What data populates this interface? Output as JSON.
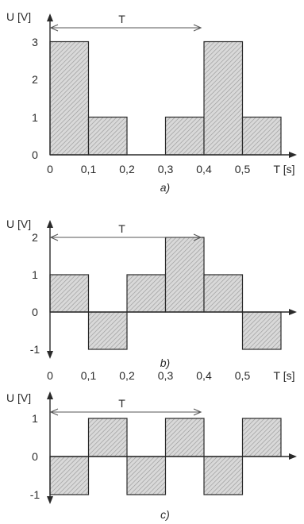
{
  "chart_data": [
    {
      "type": "bar",
      "panel_label": "a)",
      "ylabel": "U [V]",
      "xlabel": "T [s]",
      "period_label": "T",
      "period": [
        0,
        0.4
      ],
      "x_ticks": [
        "0",
        "0,1",
        "0,2",
        "0,3",
        "0,4",
        "0,5"
      ],
      "y_ticks": [
        "0",
        "1",
        "2",
        "3"
      ],
      "ylim": [
        0,
        3
      ],
      "bars": [
        {
          "x0": 0.0,
          "x1": 0.1,
          "value": 3
        },
        {
          "x0": 0.1,
          "x1": 0.2,
          "value": 1
        },
        {
          "x0": 0.2,
          "x1": 0.3,
          "value": 0
        },
        {
          "x0": 0.3,
          "x1": 0.4,
          "value": 1
        },
        {
          "x0": 0.4,
          "x1": 0.5,
          "value": 3
        },
        {
          "x0": 0.5,
          "x1": 0.6,
          "value": 1
        }
      ]
    },
    {
      "type": "bar",
      "panel_label": "b)",
      "ylabel": "U [V]",
      "xlabel": "T [s]",
      "period_label": "T",
      "period": [
        0,
        0.4
      ],
      "x_ticks": [
        "0",
        "0,1",
        "0,2",
        "0,3",
        "0,4",
        "0,5"
      ],
      "y_ticks": [
        "-1",
        "0",
        "1",
        "2"
      ],
      "ylim": [
        -1,
        2
      ],
      "bars": [
        {
          "x0": 0.0,
          "x1": 0.1,
          "value": 1
        },
        {
          "x0": 0.1,
          "x1": 0.2,
          "value": -1
        },
        {
          "x0": 0.2,
          "x1": 0.3,
          "value": 1
        },
        {
          "x0": 0.3,
          "x1": 0.4,
          "value": 2
        },
        {
          "x0": 0.4,
          "x1": 0.5,
          "value": 1
        },
        {
          "x0": 0.5,
          "x1": 0.6,
          "value": -1
        }
      ]
    },
    {
      "type": "bar",
      "panel_label": "c)",
      "ylabel": "U [V]",
      "xlabel": "",
      "period_label": "T",
      "period": [
        0,
        0.4
      ],
      "x_ticks": [],
      "y_ticks": [
        "-1",
        "0",
        "1"
      ],
      "ylim": [
        -1,
        1
      ],
      "bars": [
        {
          "x0": 0.0,
          "x1": 0.1,
          "value": -1
        },
        {
          "x0": 0.1,
          "x1": 0.2,
          "value": 1
        },
        {
          "x0": 0.2,
          "x1": 0.3,
          "value": -1
        },
        {
          "x0": 0.3,
          "x1": 0.4,
          "value": 1
        },
        {
          "x0": 0.4,
          "x1": 0.5,
          "value": -1
        },
        {
          "x0": 0.5,
          "x1": 0.6,
          "value": 1
        }
      ]
    }
  ]
}
